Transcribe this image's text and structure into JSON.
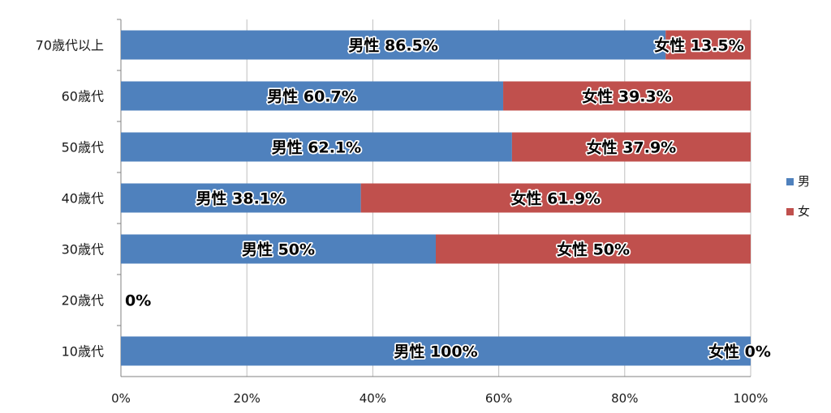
{
  "chart_data": {
    "type": "bar",
    "orientation": "horizontal",
    "stacked": "percent",
    "categories": [
      "70歳代以上",
      "60歳代",
      "50歳代",
      "40歳代",
      "30歳代",
      "20歳代",
      "10歳代"
    ],
    "series": [
      {
        "name": "男",
        "color": "#4f81bd",
        "values": [
          86.5,
          60.7,
          62.1,
          38.1,
          50,
          0,
          100
        ],
        "labels": [
          "男性 86.5%",
          "男性 60.7%",
          "男性 62.1%",
          "男性 38.1%",
          "男性 50%",
          "0%",
          "男性 100%"
        ]
      },
      {
        "name": "女",
        "color": "#c0504d",
        "values": [
          13.5,
          39.3,
          37.9,
          61.9,
          50,
          0,
          0
        ],
        "labels": [
          "女性 13.5%",
          "女性 39.3%",
          "女性 37.9%",
          "女性 61.9%",
          "女性 50%",
          "",
          "女性 0%"
        ]
      }
    ],
    "x_ticks": [
      "0%",
      "20%",
      "40%",
      "60%",
      "80%",
      "100%"
    ],
    "xlim": [
      0,
      100
    ],
    "grid": true,
    "legend_position": "right",
    "title": "",
    "xlabel": "",
    "ylabel": ""
  }
}
